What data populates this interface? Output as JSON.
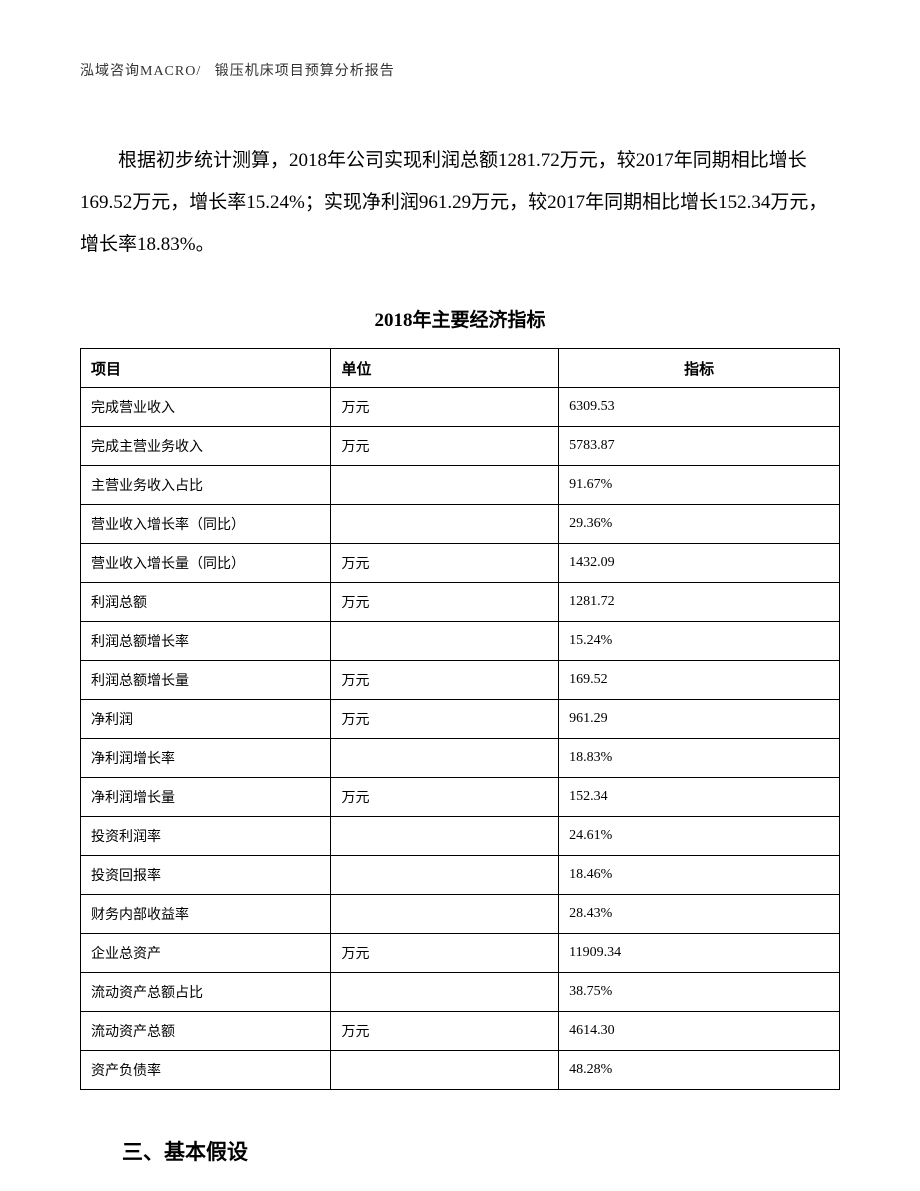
{
  "header": {
    "left": "泓域咨询MACRO/",
    "right": "锻压机床项目预算分析报告"
  },
  "paragraph": "根据初步统计测算，2018年公司实现利润总额1281.72万元，较2017年同期相比增长169.52万元，增长率15.24%；实现净利润961.29万元，较2017年同期相比增长152.34万元，增长率18.83%。",
  "table": {
    "title": "2018年主要经济指标",
    "columns": {
      "item": "项目",
      "unit": "单位",
      "indicator": "指标"
    },
    "rows": [
      {
        "item": "完成营业收入",
        "unit": "万元",
        "indicator": "6309.53"
      },
      {
        "item": "完成主营业务收入",
        "unit": "万元",
        "indicator": "5783.87"
      },
      {
        "item": "主营业务收入占比",
        "unit": "",
        "indicator": "91.67%"
      },
      {
        "item": "营业收入增长率（同比）",
        "unit": "",
        "indicator": "29.36%"
      },
      {
        "item": "营业收入增长量（同比）",
        "unit": "万元",
        "indicator": "1432.09"
      },
      {
        "item": "利润总额",
        "unit": "万元",
        "indicator": "1281.72"
      },
      {
        "item": "利润总额增长率",
        "unit": "",
        "indicator": "15.24%"
      },
      {
        "item": "利润总额增长量",
        "unit": "万元",
        "indicator": "169.52"
      },
      {
        "item": "净利润",
        "unit": "万元",
        "indicator": "961.29"
      },
      {
        "item": "净利润增长率",
        "unit": "",
        "indicator": "18.83%"
      },
      {
        "item": "净利润增长量",
        "unit": "万元",
        "indicator": "152.34"
      },
      {
        "item": "投资利润率",
        "unit": "",
        "indicator": "24.61%"
      },
      {
        "item": "投资回报率",
        "unit": "",
        "indicator": "18.46%"
      },
      {
        "item": "财务内部收益率",
        "unit": "",
        "indicator": "28.43%"
      },
      {
        "item": "企业总资产",
        "unit": "万元",
        "indicator": "11909.34"
      },
      {
        "item": "流动资产总额占比",
        "unit": "",
        "indicator": "38.75%"
      },
      {
        "item": "流动资产总额",
        "unit": "万元",
        "indicator": "4614.30"
      },
      {
        "item": "资产负债率",
        "unit": "",
        "indicator": "48.28%"
      }
    ]
  },
  "section_heading": "三、基本假设",
  "styles": {
    "background_color": "#ffffff",
    "text_color": "#000000",
    "border_color": "#000000",
    "body_fontsize": 19,
    "table_fontsize": 14,
    "header_fontsize": 14,
    "title_fontsize": 19,
    "heading_fontsize": 21
  }
}
